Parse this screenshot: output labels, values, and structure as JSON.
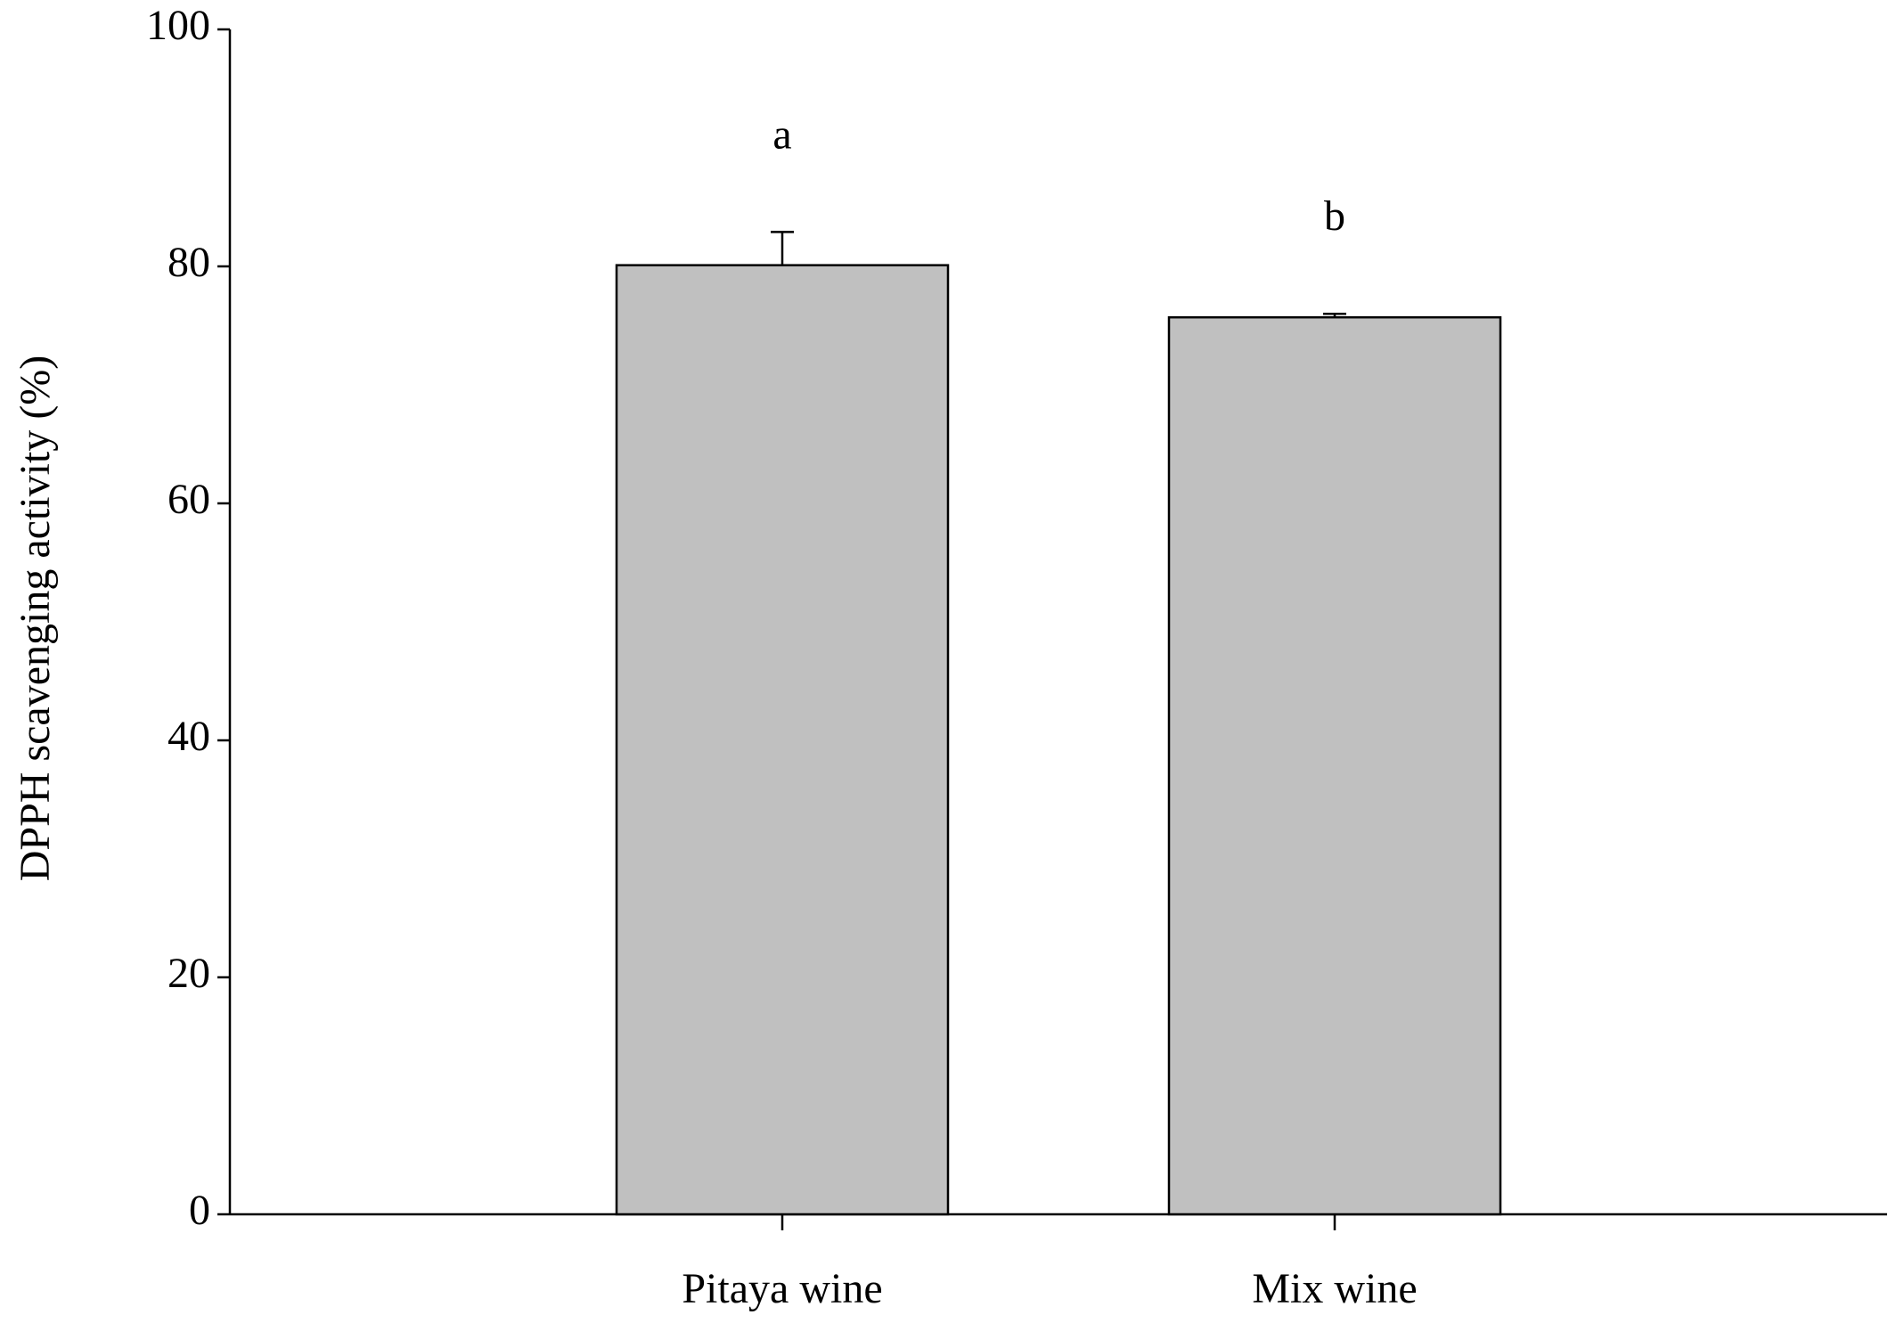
{
  "chart_data": {
    "type": "bar",
    "y_label": "DPPH scavenging activity (%)",
    "categories": [
      "Pitaya wine",
      "Mix wine"
    ],
    "values": [
      80.1,
      75.7
    ],
    "errors": [
      2.8,
      0.3
    ],
    "annotations": [
      "a",
      "b"
    ],
    "color": "#c0c0c0",
    "ylim": [
      0,
      100
    ],
    "yticks": [
      0,
      20,
      40,
      60,
      80,
      100
    ],
    "grid": false
  }
}
